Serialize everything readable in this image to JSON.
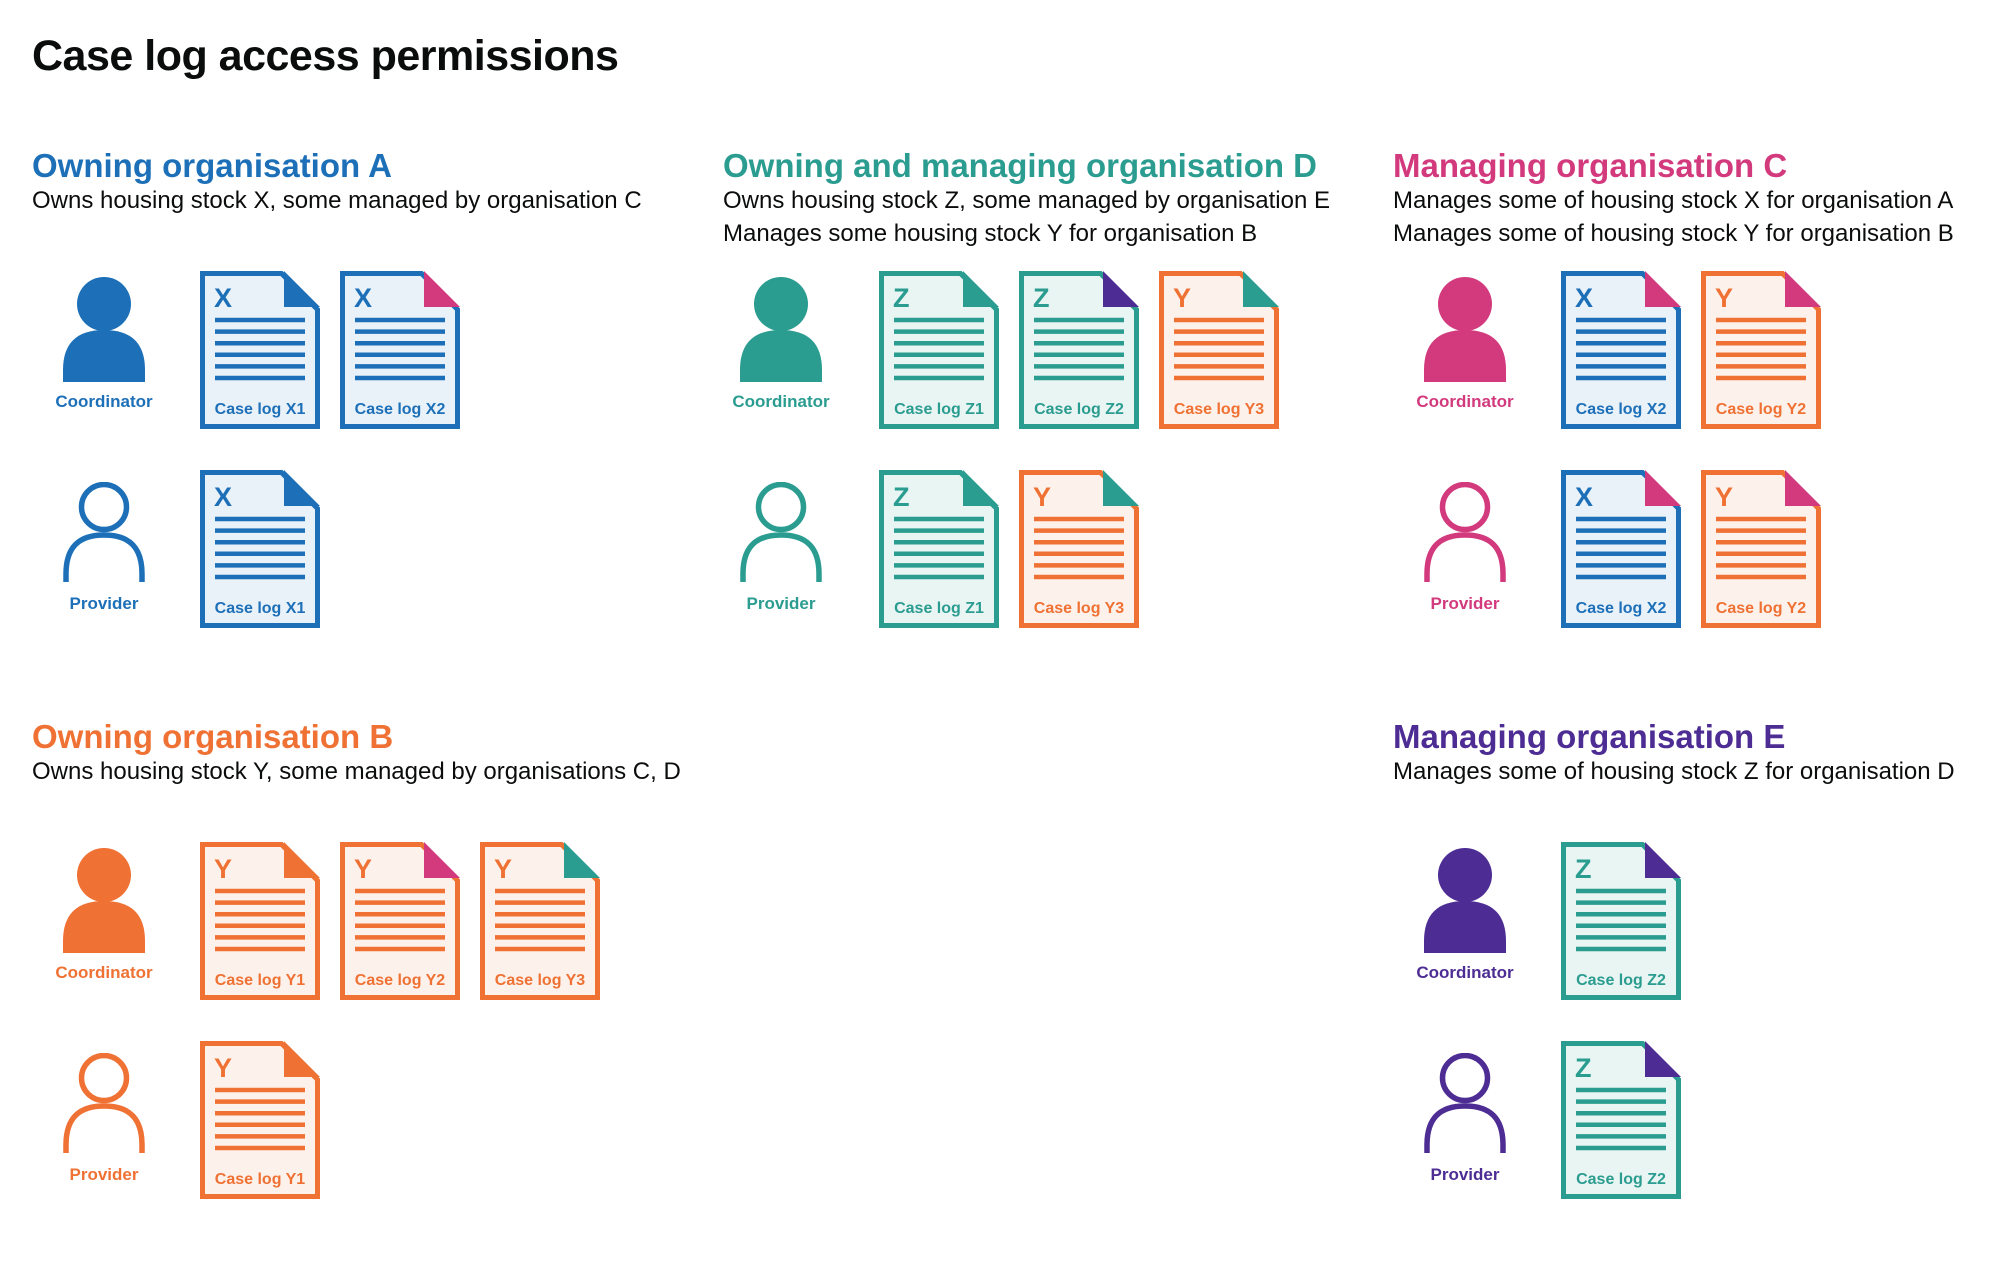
{
  "page": {
    "title": "Case log access permissions"
  },
  "colors": {
    "blue": "#1d70b8",
    "teal": "#2b9c90",
    "pink": "#d23a7d",
    "orange": "#ef7134",
    "purple": "#4d2d94",
    "text": "#0b0c0c"
  },
  "doc_fills": {
    "blue": "#e9f1f9",
    "teal": "#e9f5f3",
    "orange": "#fdf2eb"
  },
  "sections": [
    {
      "id": "owning-organisation-a",
      "title": "Owning organisation A",
      "color": "blue",
      "description": [
        "Owns housing stock X, some managed by organisation C"
      ],
      "actors": [
        {
          "role": "Coordinator",
          "icon": "person-filled",
          "docs": [
            {
              "letter": "X",
              "label": "Case log X1",
              "color": "blue",
              "fold": "blue"
            },
            {
              "letter": "X",
              "label": "Case log X2",
              "color": "blue",
              "fold": "pink"
            }
          ]
        },
        {
          "role": "Provider",
          "icon": "person-outline",
          "docs": [
            {
              "letter": "X",
              "label": "Case log X1",
              "color": "blue",
              "fold": "blue"
            }
          ]
        }
      ]
    },
    {
      "id": "owning-and-managing-organisation-d",
      "title": "Owning and managing organisation D",
      "color": "teal",
      "description": [
        "Owns housing stock Z, some managed by organisation E",
        "Manages some housing stock Y for organisation B"
      ],
      "actors": [
        {
          "role": "Coordinator",
          "icon": "person-filled",
          "docs": [
            {
              "letter": "Z",
              "label": "Case log Z1",
              "color": "teal",
              "fold": "teal"
            },
            {
              "letter": "Z",
              "label": "Case log Z2",
              "color": "teal",
              "fold": "purple"
            },
            {
              "letter": "Y",
              "label": "Case log Y3",
              "color": "orange",
              "fold": "teal"
            }
          ]
        },
        {
          "role": "Provider",
          "icon": "person-outline",
          "docs": [
            {
              "letter": "Z",
              "label": "Case log Z1",
              "color": "teal",
              "fold": "teal"
            },
            {
              "letter": "Y",
              "label": "Case log Y3",
              "color": "orange",
              "fold": "teal"
            }
          ]
        }
      ]
    },
    {
      "id": "managing-organisation-c",
      "title": "Managing organisation C",
      "color": "pink",
      "description": [
        "Manages some of housing stock X for organisation A",
        "Manages some of housing stock Y for organisation B"
      ],
      "actors": [
        {
          "role": "Coordinator",
          "icon": "person-filled",
          "docs": [
            {
              "letter": "X",
              "label": "Case log X2",
              "color": "blue",
              "fold": "pink"
            },
            {
              "letter": "Y",
              "label": "Case log Y2",
              "color": "orange",
              "fold": "pink"
            }
          ]
        },
        {
          "role": "Provider",
          "icon": "person-outline",
          "docs": [
            {
              "letter": "X",
              "label": "Case log X2",
              "color": "blue",
              "fold": "pink"
            },
            {
              "letter": "Y",
              "label": "Case log Y2",
              "color": "orange",
              "fold": "pink"
            }
          ]
        }
      ]
    },
    {
      "id": "owning-organisation-b",
      "title": "Owning organisation B",
      "color": "orange",
      "description": [
        "Owns housing stock Y, some managed by organisations C, D"
      ],
      "actors": [
        {
          "role": "Coordinator",
          "icon": "person-filled",
          "docs": [
            {
              "letter": "Y",
              "label": "Case log Y1",
              "color": "orange",
              "fold": "orange"
            },
            {
              "letter": "Y",
              "label": "Case log Y2",
              "color": "orange",
              "fold": "pink"
            },
            {
              "letter": "Y",
              "label": "Case log Y3",
              "color": "orange",
              "fold": "teal"
            }
          ]
        },
        {
          "role": "Provider",
          "icon": "person-outline",
          "docs": [
            {
              "letter": "Y",
              "label": "Case log Y1",
              "color": "orange",
              "fold": "orange"
            }
          ]
        }
      ]
    },
    {
      "id": "managing-organisation-e",
      "title": "Managing organisation E",
      "color": "purple",
      "description": [
        "Manages some of housing stock Z for organisation D"
      ],
      "actors": [
        {
          "role": "Coordinator",
          "icon": "person-filled",
          "docs": [
            {
              "letter": "Z",
              "label": "Case log Z2",
              "color": "teal",
              "fold": "purple"
            }
          ]
        },
        {
          "role": "Provider",
          "icon": "person-outline",
          "docs": [
            {
              "letter": "Z",
              "label": "Case log Z2",
              "color": "teal",
              "fold": "purple"
            }
          ]
        }
      ]
    }
  ]
}
